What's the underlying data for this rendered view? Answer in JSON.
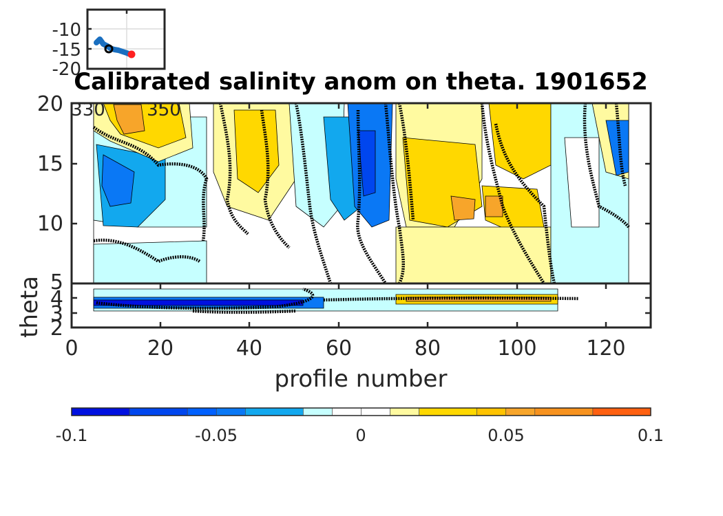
{
  "chart_data": {
    "type": "contour",
    "title": "Calibrated salinity anom on theta. 1901652",
    "xlabel": "profile number",
    "ylabel": "theta",
    "xlim": [
      0,
      130
    ],
    "x_ticks": [
      "0",
      "20",
      "40",
      "60",
      "80",
      "100",
      "120"
    ],
    "upper_panel": {
      "ylim": [
        5,
        20
      ],
      "y_ticks": [
        "5",
        "10",
        "15",
        "20"
      ]
    },
    "lower_panel": {
      "ylim": [
        2,
        5
      ],
      "y_ticks": [
        "2",
        "3",
        "4"
      ]
    },
    "colorbar": {
      "range": [
        -0.1,
        0.1
      ],
      "tick_labels": [
        "-0.1",
        "-0.05",
        "0",
        "0.05",
        "0.1"
      ],
      "levels": [
        -0.1,
        -0.08,
        -0.06,
        -0.05,
        -0.04,
        -0.02,
        -0.01,
        0,
        0.01,
        0.02,
        0.04,
        0.05,
        0.06,
        0.08,
        0.1
      ],
      "colors": [
        "#0010e0",
        "#0046ee",
        "#0060ff",
        "#0a78f5",
        "#12a8ee",
        "#c6ffff",
        "#ffffff",
        "#ffffff",
        "#fffaa0",
        "#ffd800",
        "#ffc300",
        "#f7a52a",
        "#f7921e",
        "#ff6010"
      ]
    },
    "inset_map": {
      "y_ticks": [
        "-10",
        "-15",
        "-20"
      ],
      "x_ticks": [
        "330",
        "350"
      ],
      "track_color": "#1a6fc0",
      "start_marker_color": "#000000",
      "end_marker_color": "#ff2020"
    }
  },
  "colors": {
    "axis": "#262626",
    "contour_line": "#000000"
  }
}
